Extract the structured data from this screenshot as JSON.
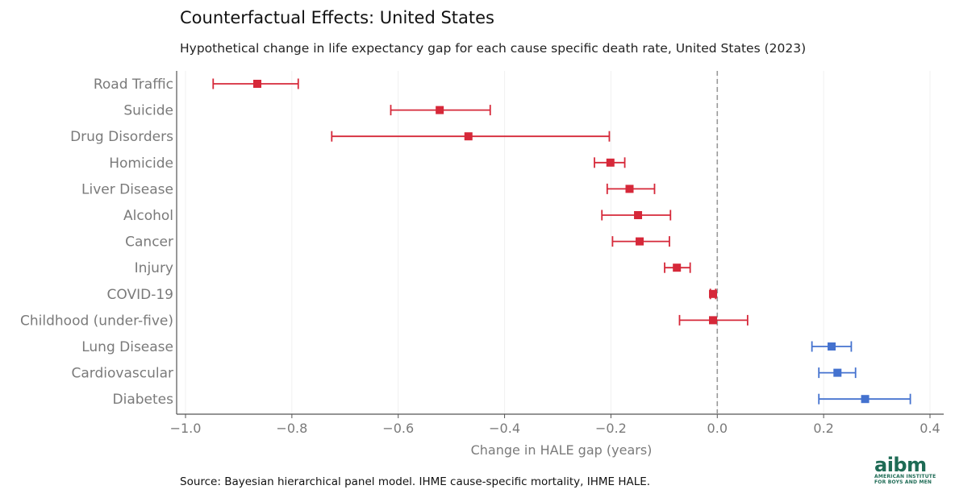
{
  "header": {
    "title": "Counterfactual Effects: United States",
    "subtitle": "Hypothetical change in life expectancy gap for each cause specific death rate, United States (2023)"
  },
  "footer": {
    "source": "Source: Bayesian hierarchical panel model. IHME cause-specific mortality, IHME HALE."
  },
  "logo": {
    "mark": "aibm",
    "line1": "AMERICAN INSTITUTE",
    "line2": "FOR BOYS AND MEN"
  },
  "chart_data": {
    "type": "scatter",
    "title": "Counterfactual Effects: United States",
    "subtitle": "Hypothetical change in life expectancy gap for each cause specific death rate, United States (2023)",
    "xlabel": "Change in HALE gap (years)",
    "ylabel": "",
    "xlim": [
      -1.0,
      0.4
    ],
    "xticks": [
      -1.0,
      -0.8,
      -0.6,
      -0.4,
      -0.2,
      0.0,
      0.2,
      0.4
    ],
    "xtick_labels": [
      "−1.0",
      "−0.8",
      "−0.6",
      "−0.4",
      "−0.2",
      "0.0",
      "0.2",
      "0.4"
    ],
    "reference_line": 0.0,
    "grid": "vertical",
    "legend": "none",
    "colors": {
      "negative": "#d62839",
      "positive": "#4472cf",
      "reference": "#999999"
    },
    "categories": [
      "Road Traffic",
      "Suicide",
      "Drug Disorders",
      "Homicide",
      "Liver Disease",
      "Alcohol",
      "Cancer",
      "Injury",
      "COVID-19",
      "Childhood (under-five)",
      "Lung Disease",
      "Cardiovascular",
      "Diabetes"
    ],
    "estimate": [
      -0.865,
      -0.522,
      -0.468,
      -0.201,
      -0.165,
      -0.149,
      -0.146,
      -0.076,
      -0.008,
      -0.008,
      0.215,
      0.226,
      0.278
    ],
    "lower": [
      -0.948,
      -0.614,
      -0.725,
      -0.231,
      -0.207,
      -0.217,
      -0.197,
      -0.099,
      -0.013,
      -0.071,
      0.178,
      0.191,
      0.191
    ],
    "upper": [
      -0.788,
      -0.427,
      -0.203,
      -0.174,
      -0.118,
      -0.088,
      -0.09,
      -0.051,
      -0.003,
      0.057,
      0.252,
      0.26,
      0.363
    ]
  }
}
